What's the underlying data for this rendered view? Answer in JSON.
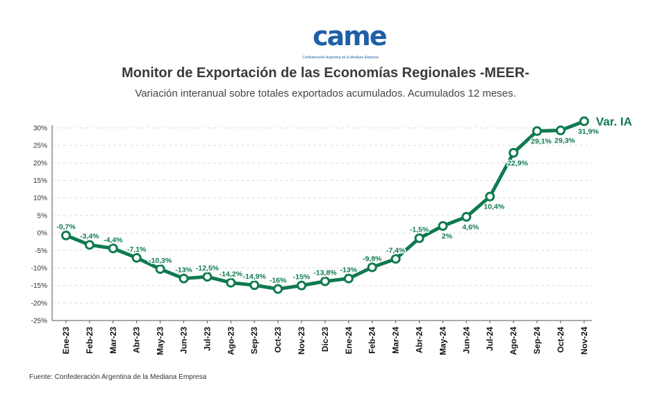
{
  "logo": {
    "wordmark": "came",
    "tagline": "Confederación Argentina de la Mediana Empresa"
  },
  "header": {
    "title": "Monitor de Exportación de las Economías Regionales -MEER-",
    "subtitle": "Variación interanual sobre totales exportados acumulados. Acumulados 12 meses."
  },
  "footer": {
    "source": "Fuente: Confederación Argentina de la Mediana Empresa"
  },
  "colors": {
    "series": "#0f7a4f",
    "label": "#0f7a4f",
    "grid": "#dddddd",
    "axis": "#555555"
  },
  "chart_data": {
    "type": "line",
    "title": "Monitor de Exportación de las Economías Regionales -MEER-",
    "subtitle": "Variación interanual sobre totales exportados acumulados. Acumulados 12 meses.",
    "categories": [
      "Ene-23",
      "Feb-23",
      "Mar-23",
      "Abr-23",
      "May-23",
      "Jun-23",
      "Jul-23",
      "Ago-23",
      "Sep-23",
      "Oct-23",
      "Nov-23",
      "Dic-23",
      "Ene-24",
      "Feb-24",
      "Mar-24",
      "Abr-24",
      "May-24",
      "Jun-24",
      "Jul-24",
      "Ago-24",
      "Sep-24",
      "Oct-24",
      "Nov-24"
    ],
    "series": [
      {
        "name": "Var. IA",
        "values": [
          -0.7,
          -3.4,
          -4.4,
          -7.1,
          -10.3,
          -13,
          -12.5,
          -14.2,
          -14.9,
          -16,
          -15,
          -13.8,
          -13,
          -9.8,
          -7.4,
          -1.5,
          2,
          4.6,
          10.4,
          22.9,
          29.1,
          29.3,
          31.9
        ],
        "labels": [
          "-0,7%",
          "-3,4%",
          "-4,4%",
          "-7,1%",
          "-10,3%",
          "-13%",
          "-12,5%",
          "-14,2%",
          "-14,9%",
          "-16%",
          "-15%",
          "-13,8%",
          "-13%",
          "-9,8%",
          "-7,4%",
          "-1,5%",
          "2%",
          "4,6%",
          "10,4%",
          "22,9%",
          "29,1%",
          "29,3%",
          "31,9%"
        ]
      }
    ],
    "ylim": [
      -25,
      30
    ],
    "yticks": [
      "30%",
      "25%",
      "20%",
      "15%",
      "10%",
      "5%",
      "0%",
      "-5%",
      "-10%",
      "-15%",
      "-20%",
      "-25%"
    ],
    "grid": true,
    "legend": "end-of-line label"
  }
}
